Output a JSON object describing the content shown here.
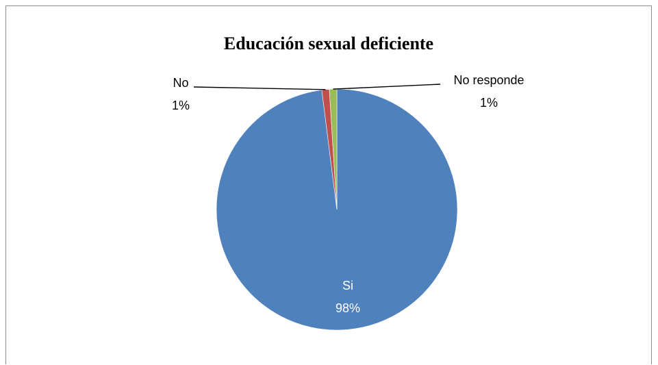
{
  "chart_data": {
    "type": "pie",
    "title": "Educación sexual deficiente",
    "slices": [
      {
        "label": "Si",
        "percent_label": "98%",
        "value": 98,
        "color": "#4f81bd"
      },
      {
        "label": "No",
        "percent_label": "1%",
        "value": 1,
        "color": "#c0504d"
      },
      {
        "label": "No responde",
        "percent_label": "1%",
        "value": 1,
        "color": "#9bbb59"
      }
    ],
    "legend": "none",
    "data_labels": "category-and-percent"
  }
}
